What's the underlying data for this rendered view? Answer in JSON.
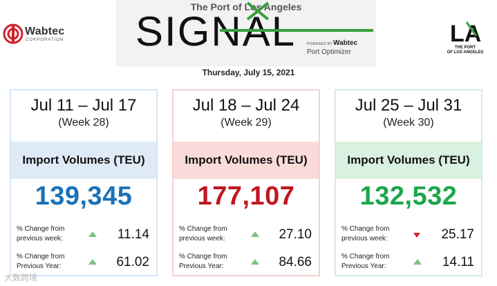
{
  "header": {
    "left_logo": {
      "name": "Wabtec",
      "subtitle": "CORPORATION"
    },
    "banner": {
      "port_title": "The Port of Los Angeles",
      "signal_word": "SIGNAL",
      "powered_by": "POWERED BY",
      "powered_brand": "Wabtec",
      "product": "Port Optimizer",
      "accent_color": "#3a9d3a"
    },
    "right_logo": {
      "mark": "LA",
      "line1": "THE PORT",
      "line2": "OF LOS ANGELES"
    },
    "date": "Thursday, July 15, 2021"
  },
  "cards": [
    {
      "range": "Jul 11 – Jul 17",
      "week": "(Week 28)",
      "metric": "Import Volumes (TEU)",
      "value": "139,345",
      "stats": [
        {
          "label": "% Change from previous week:",
          "direction": "up",
          "value": "11.14"
        },
        {
          "label": "% Change from Previous Year:",
          "direction": "up",
          "value": "61.02"
        }
      ]
    },
    {
      "range": "Jul 18 – Jul 24",
      "week": "(Week 29)",
      "metric": "Import Volumes (TEU)",
      "value": "177,107",
      "stats": [
        {
          "label": "% Change from previous week:",
          "direction": "up",
          "value": "27.10"
        },
        {
          "label": "% Change from Previous Year:",
          "direction": "up",
          "value": "84.66"
        }
      ]
    },
    {
      "range": "Jul 25 – Jul 31",
      "week": "(Week 30)",
      "metric": "Import Volumes (TEU)",
      "value": "132,532",
      "stats": [
        {
          "label": "% Change from previous week:",
          "direction": "down",
          "value": "25.17"
        },
        {
          "label": "% Change from Previous Year:",
          "direction": "up",
          "value": "14.11"
        }
      ]
    }
  ],
  "watermark": "大数跨境"
}
